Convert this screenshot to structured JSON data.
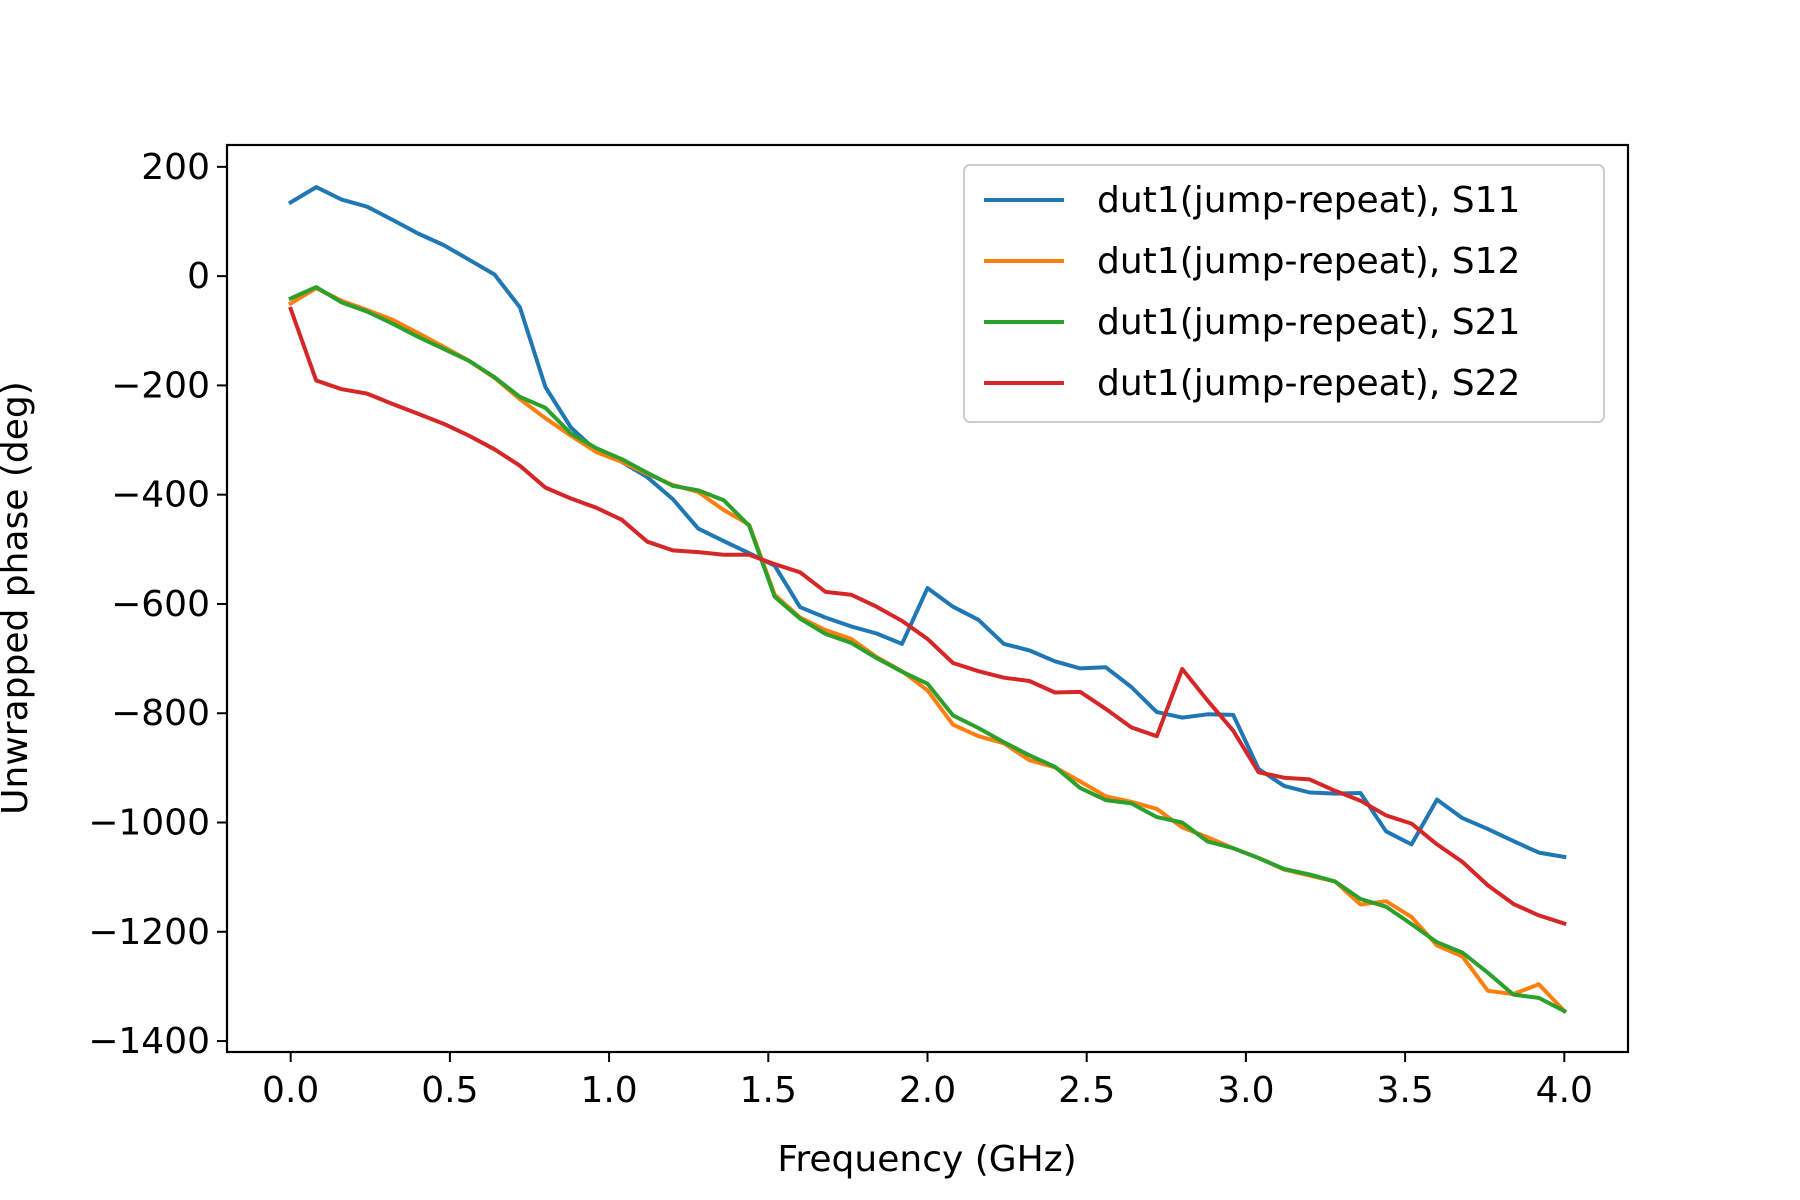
{
  "chart_data": {
    "type": "line",
    "title": "",
    "xlabel": "Frequency (GHz)",
    "ylabel": "Unwrapped phase (deg)",
    "xlim": [
      -0.2,
      4.2
    ],
    "ylim": [
      -1420,
      240
    ],
    "xticks": [
      0.0,
      0.5,
      1.0,
      1.5,
      2.0,
      2.5,
      3.0,
      3.5,
      4.0
    ],
    "xtick_labels": [
      "0.0",
      "0.5",
      "1.0",
      "1.5",
      "2.0",
      "2.5",
      "3.0",
      "3.5",
      "4.0"
    ],
    "yticks": [
      200,
      0,
      -200,
      -400,
      -600,
      -800,
      -1000,
      -1200,
      -1400
    ],
    "ytick_labels": [
      "200",
      "0",
      "−200",
      "−400",
      "−600",
      "−800",
      "−1000",
      "−1200",
      "−1400"
    ],
    "grid": false,
    "legend_position": "top-right",
    "x": [
      0.0,
      0.08,
      0.16,
      0.24,
      0.32,
      0.4,
      0.48,
      0.56,
      0.64,
      0.72,
      0.8,
      0.88,
      0.96,
      1.04,
      1.12,
      1.2,
      1.28,
      1.36,
      1.44,
      1.52,
      1.6,
      1.68,
      1.76,
      1.84,
      1.92,
      2.0,
      2.08,
      2.16,
      2.24,
      2.32,
      2.4,
      2.48,
      2.56,
      2.64,
      2.72,
      2.8,
      2.88,
      2.96,
      3.04,
      3.12,
      3.2,
      3.28,
      3.36,
      3.44,
      3.52,
      3.6,
      3.68,
      3.76,
      3.84,
      3.92,
      4.0
    ],
    "series": [
      {
        "name": "dut1(jump-repeat), S11",
        "color": "#1f77b4",
        "values": [
          135,
          163,
          140,
          127,
          103,
          78,
          57,
          30,
          3,
          -57,
          -203,
          -277,
          -320,
          -340,
          -368,
          -408,
          -462,
          -485,
          -507,
          -530,
          -606,
          -625,
          -641,
          -654,
          -673,
          -571,
          -605,
          -629,
          -673,
          -685,
          -705,
          -718,
          -716,
          -752,
          -798,
          -808,
          -802,
          -803,
          -902,
          -933,
          -945,
          -947,
          -946,
          -1016,
          -1040,
          -958,
          -992,
          -1012,
          -1034,
          -1055,
          -1063
        ]
      },
      {
        "name": "dut1(jump-repeat), S12",
        "color": "#ff7f0e",
        "values": [
          -50,
          -22,
          -45,
          -62,
          -80,
          -104,
          -129,
          -155,
          -186,
          -225,
          -260,
          -292,
          -322,
          -340,
          -362,
          -382,
          -395,
          -428,
          -455,
          -583,
          -625,
          -648,
          -664,
          -697,
          -723,
          -758,
          -821,
          -842,
          -855,
          -886,
          -899,
          -925,
          -952,
          -962,
          -975,
          -1009,
          -1027,
          -1047,
          -1065,
          -1086,
          -1097,
          -1108,
          -1150,
          -1144,
          -1173,
          -1225,
          -1245,
          -1308,
          -1314,
          -1296,
          -1345
        ]
      },
      {
        "name": "dut1(jump-repeat), S21",
        "color": "#2ca02c",
        "values": [
          -41,
          -20,
          -48,
          -65,
          -87,
          -111,
          -133,
          -155,
          -185,
          -221,
          -241,
          -288,
          -315,
          -335,
          -360,
          -384,
          -392,
          -410,
          -457,
          -587,
          -627,
          -655,
          -671,
          -699,
          -724,
          -746,
          -804,
          -827,
          -853,
          -877,
          -898,
          -937,
          -959,
          -965,
          -990,
          -1000,
          -1035,
          -1047,
          -1065,
          -1085,
          -1095,
          -1108,
          -1140,
          -1154,
          -1186,
          -1219,
          -1238,
          -1275,
          -1315,
          -1321,
          -1345
        ]
      },
      {
        "name": "dut1(jump-repeat), S22",
        "color": "#d62728",
        "values": [
          -60,
          -191,
          -207,
          -215,
          -234,
          -252,
          -270,
          -292,
          -317,
          -347,
          -387,
          -407,
          -424,
          -446,
          -486,
          -502,
          -505,
          -510,
          -510,
          -527,
          -542,
          -578,
          -583,
          -605,
          -631,
          -664,
          -708,
          -723,
          -735,
          -741,
          -762,
          -761,
          -792,
          -826,
          -842,
          -719,
          -777,
          -832,
          -908,
          -918,
          -921,
          -942,
          -960,
          -987,
          -1002,
          -1040,
          -1072,
          -1115,
          -1149,
          -1170,
          -1185
        ]
      }
    ]
  }
}
